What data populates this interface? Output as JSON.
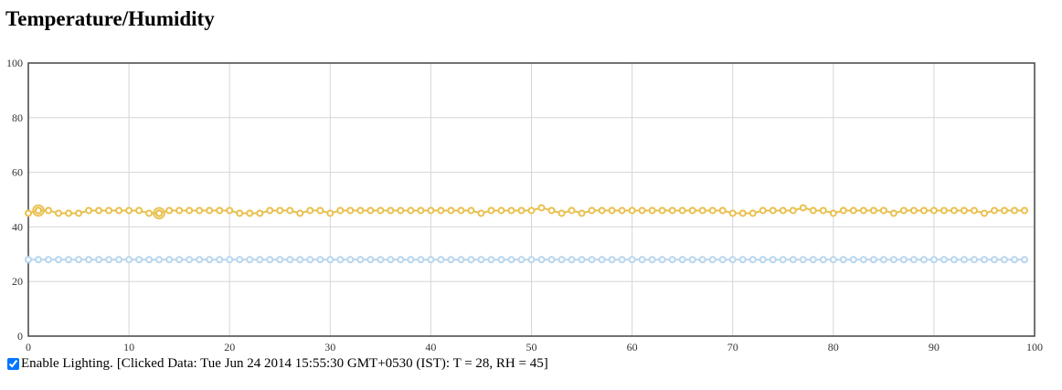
{
  "page": {
    "title": "Temperature/Humidity"
  },
  "controls": {
    "lighting_label": "Enable Lighting.",
    "lighting_checked": true,
    "clicked_info": "[Clicked Data: Tue Jun 24 2014 15:55:30 GMT+0530 (IST): T = 28, RH = 45]"
  },
  "chart_data": {
    "type": "line",
    "title": "",
    "xlabel": "",
    "ylabel": "",
    "xlim": [
      0,
      100
    ],
    "ylim": [
      0,
      100
    ],
    "grid": true,
    "x_ticks": [
      0,
      10,
      20,
      30,
      40,
      50,
      60,
      70,
      80,
      90,
      100
    ],
    "y_ticks": [
      0,
      20,
      40,
      60,
      80,
      100
    ],
    "x": [
      0,
      1,
      2,
      3,
      4,
      5,
      6,
      7,
      8,
      9,
      10,
      11,
      12,
      13,
      14,
      15,
      16,
      17,
      18,
      19,
      20,
      21,
      22,
      23,
      24,
      25,
      26,
      27,
      28,
      29,
      30,
      31,
      32,
      33,
      34,
      35,
      36,
      37,
      38,
      39,
      40,
      41,
      42,
      43,
      44,
      45,
      46,
      47,
      48,
      49,
      50,
      51,
      52,
      53,
      54,
      55,
      56,
      57,
      58,
      59,
      60,
      61,
      62,
      63,
      64,
      65,
      66,
      67,
      68,
      69,
      70,
      71,
      72,
      73,
      74,
      75,
      76,
      77,
      78,
      79,
      80,
      81,
      82,
      83,
      84,
      85,
      86,
      87,
      88,
      89,
      90,
      91,
      92,
      93,
      94,
      95,
      96,
      97,
      98,
      99
    ],
    "highlighted_points": [
      {
        "series": 0,
        "x": 1,
        "y": 46
      },
      {
        "series": 0,
        "x": 13,
        "y": 45
      }
    ],
    "series": [
      {
        "color": "#e9c04e",
        "values": [
          45,
          46,
          46,
          45,
          45,
          45,
          46,
          46,
          46,
          46,
          46,
          46,
          45,
          45,
          46,
          46,
          46,
          46,
          46,
          46,
          46,
          45,
          45,
          45,
          46,
          46,
          46,
          45,
          46,
          46,
          45,
          46,
          46,
          46,
          46,
          46,
          46,
          46,
          46,
          46,
          46,
          46,
          46,
          46,
          46,
          45,
          46,
          46,
          46,
          46,
          46,
          47,
          46,
          45,
          46,
          45,
          46,
          46,
          46,
          46,
          46,
          46,
          46,
          46,
          46,
          46,
          46,
          46,
          46,
          46,
          45,
          45,
          45,
          46,
          46,
          46,
          46,
          47,
          46,
          46,
          45,
          46,
          46,
          46,
          46,
          46,
          45,
          46,
          46,
          46,
          46,
          46,
          46,
          46,
          46,
          45,
          46,
          46,
          46,
          46
        ]
      },
      {
        "color": "#b8d6ee",
        "values": [
          28,
          28,
          28,
          28,
          28,
          28,
          28,
          28,
          28,
          28,
          28,
          28,
          28,
          28,
          28,
          28,
          28,
          28,
          28,
          28,
          28,
          28,
          28,
          28,
          28,
          28,
          28,
          28,
          28,
          28,
          28,
          28,
          28,
          28,
          28,
          28,
          28,
          28,
          28,
          28,
          28,
          28,
          28,
          28,
          28,
          28,
          28,
          28,
          28,
          28,
          28,
          28,
          28,
          28,
          28,
          28,
          28,
          28,
          28,
          28,
          28,
          28,
          28,
          28,
          28,
          28,
          28,
          28,
          28,
          28,
          28,
          28,
          28,
          28,
          28,
          28,
          28,
          28,
          28,
          28,
          28,
          28,
          28,
          28,
          28,
          28,
          28,
          28,
          28,
          28,
          28,
          28,
          28,
          28,
          28,
          28,
          28,
          28,
          28,
          28
        ]
      }
    ]
  }
}
